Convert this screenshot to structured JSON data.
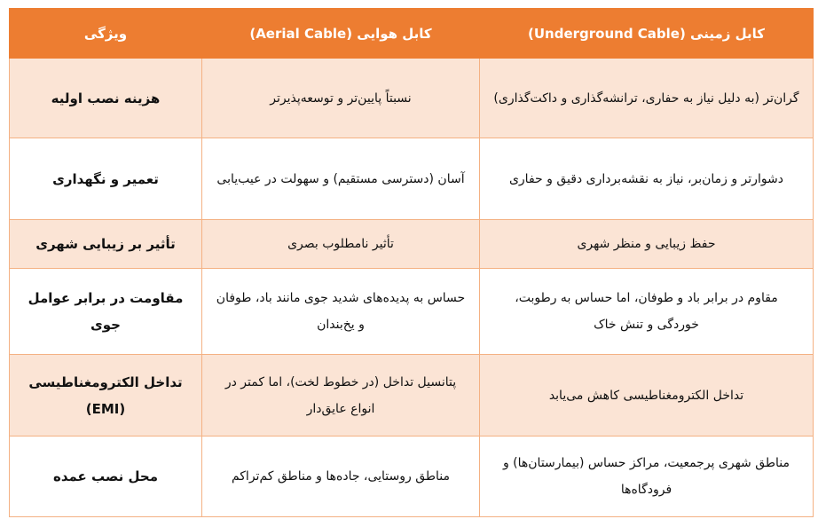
{
  "header": {
    "feature": "ویژگی",
    "aerial": "کابل هوایی (Aerial Cable)",
    "underground": "کابل زمینی (Underground Cable)"
  },
  "rows": [
    {
      "feature": "هزینه نصب اولیه",
      "aerial": "نسبتاً پایین‌تر و توسعه‌پذیرتر",
      "underground": "گران‌تر (به دلیل نیاز به حفاری، ترانشه‌گذاری و داکت‌گذاری)"
    },
    {
      "feature": "تعمیر و نگهداری",
      "aerial": "آسان (دسترسی مستقیم) و سهولت در عیب‌یابی",
      "underground": "دشوارتر و زمان‌بر، نیاز به نقشه‌برداری دقیق و حفاری"
    },
    {
      "feature": "تأثیر بر زیبایی شهری",
      "aerial": "تأثیر نامطلوب بصری",
      "underground": "حفظ زیبایی و منظر شهری"
    },
    {
      "feature": "مقاومت در برابر عوامل جوی",
      "aerial": "حساس به پدیده‌های شدید جوی مانند باد، طوفان و یخ‌بندان",
      "underground": "مقاوم در برابر باد و طوفان، اما حساس به رطوبت، خوردگی و تنش خاک"
    },
    {
      "feature": "تداخل الکترومغناطیسی (EMI)",
      "aerial": "پتانسیل تداخل (در خطوط لخت)، اما کمتر در انواع عایق‌دار",
      "underground": "تداخل الکترومغناطیسی کاهش می‌یابد"
    },
    {
      "feature": "محل نصب عمده",
      "aerial": "مناطق روستایی، جاده‌ها و مناطق کم‌تراکم",
      "underground": "مناطق شهری پرجمعیت، مراکز حساس (بیمارستان‌ها) و فرودگاه‌ها"
    }
  ],
  "colors": {
    "header": "#ed7d31",
    "band": "#fbe4d5",
    "border": "#f4b183"
  }
}
